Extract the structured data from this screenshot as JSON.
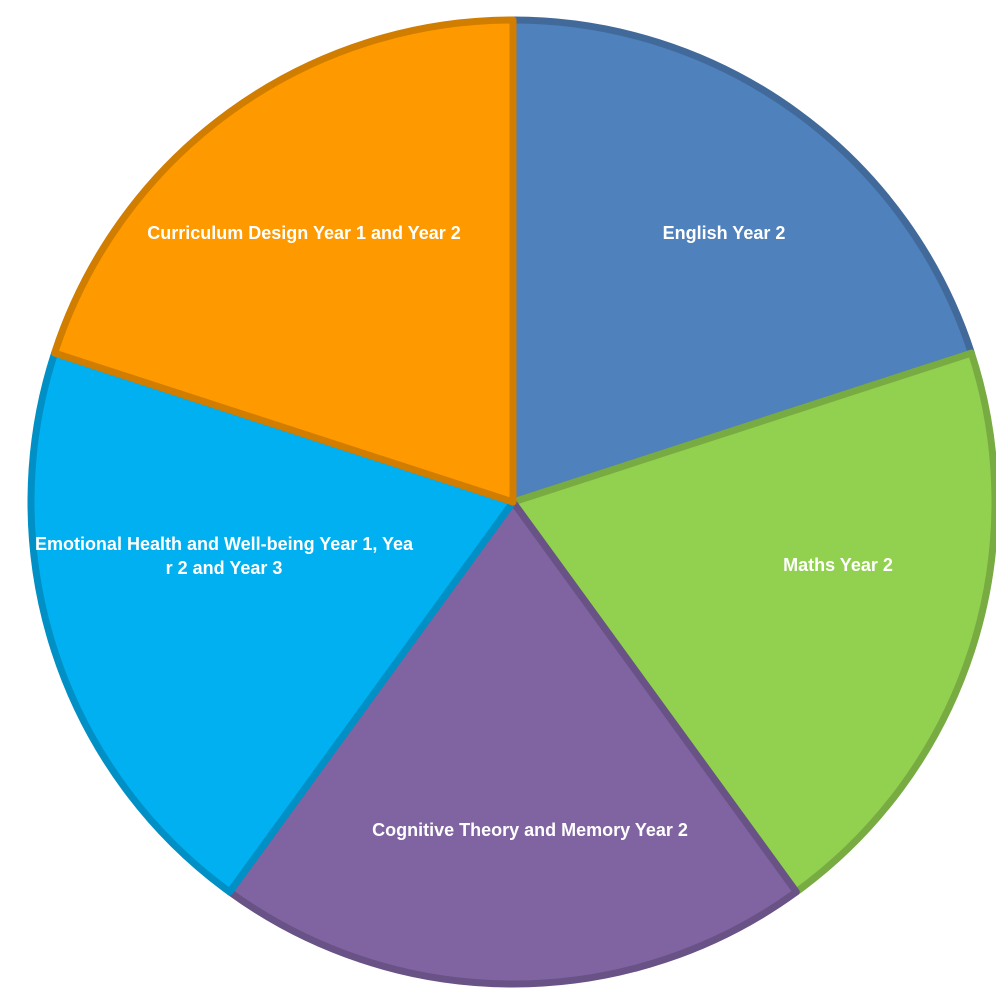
{
  "chart_data": {
    "type": "pie",
    "title": "",
    "slices": [
      {
        "label": "English Year 2",
        "value": 20,
        "color": "#4F81BD"
      },
      {
        "label": "Maths Year 2",
        "value": 20,
        "color": "#92D050"
      },
      {
        "label": "Cognitive Theory and Memory Year 2",
        "value": 20,
        "color": "#8064A2"
      },
      {
        "label": "Emotional Health and Well-being Year 1, Year 2 and Year 3",
        "value": 20,
        "color": "#00B0F0"
      },
      {
        "label": "Curriculum Design Year 1 and Year 2",
        "value": 20,
        "color": "#FF9900"
      }
    ],
    "legend": "none",
    "data_labels": "inside",
    "start_angle_deg": 0,
    "direction": "clockwise"
  }
}
